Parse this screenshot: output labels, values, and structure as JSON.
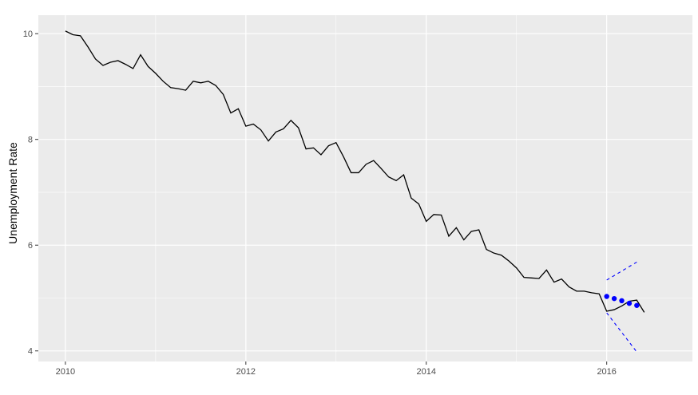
{
  "chart_data": {
    "type": "line",
    "title": "",
    "xlabel": "",
    "ylabel": "Unemployment Rate",
    "xlim": [
      2009.7,
      2016.95
    ],
    "ylim": [
      3.8,
      10.35
    ],
    "grid": true,
    "x_ticks": [
      {
        "value": 2010,
        "label": "2010"
      },
      {
        "value": 2012,
        "label": "2012"
      },
      {
        "value": 2014,
        "label": "2014"
      },
      {
        "value": 2016,
        "label": "2016"
      }
    ],
    "y_ticks": [
      {
        "value": 4,
        "label": "4"
      },
      {
        "value": 6,
        "label": "6"
      },
      {
        "value": 8,
        "label": "8"
      },
      {
        "value": 10,
        "label": "10"
      }
    ],
    "x_minor": [
      2011,
      2013,
      2015
    ],
    "y_minor": [
      5,
      7,
      9
    ],
    "colors": {
      "actual": "#000000",
      "forecast": "#0000ff",
      "panel": "#ebebeb",
      "grid": "#ffffff"
    },
    "series": [
      {
        "style": "line",
        "color": "#000000",
        "start": 2010,
        "step": 0.08333,
        "values": [
          10.05,
          9.98,
          9.96,
          9.75,
          9.52,
          9.4,
          9.46,
          9.49,
          9.42,
          9.34,
          9.6,
          9.38,
          9.25,
          9.1,
          8.98,
          8.96,
          8.93,
          9.1,
          9.07,
          9.1,
          9.02,
          8.85,
          8.5,
          8.58,
          8.25,
          8.29,
          8.18,
          7.97,
          8.14,
          8.2,
          8.36,
          8.22,
          7.82,
          7.84,
          7.71,
          7.88,
          7.94,
          7.67,
          7.37,
          7.37,
          7.53,
          7.6,
          7.45,
          7.29,
          7.22,
          7.33,
          6.89,
          6.78,
          6.45,
          6.58,
          6.57,
          6.17,
          6.33,
          6.1,
          6.26,
          6.29,
          5.92,
          5.85,
          5.81,
          5.7,
          5.57,
          5.39,
          5.38,
          5.37,
          5.53,
          5.3,
          5.36,
          5.21,
          5.13,
          5.13,
          5.1,
          5.08,
          4.75,
          4.78,
          4.85,
          4.94,
          4.96,
          4.73
        ]
      },
      {
        "style": "points",
        "color": "#0000ff",
        "x": [
          2016.0,
          2016.0833,
          2016.1667,
          2016.25,
          2016.3333
        ],
        "values": [
          5.03,
          4.99,
          4.95,
          4.9,
          4.86
        ]
      },
      {
        "style": "dashed",
        "color": "#0000ff",
        "x": [
          2016.0,
          2016.3333
        ],
        "values": [
          5.34,
          5.68
        ]
      },
      {
        "style": "dashed",
        "color": "#0000ff",
        "x": [
          2016.0,
          2016.3333
        ],
        "values": [
          4.72,
          3.98
        ]
      }
    ]
  }
}
